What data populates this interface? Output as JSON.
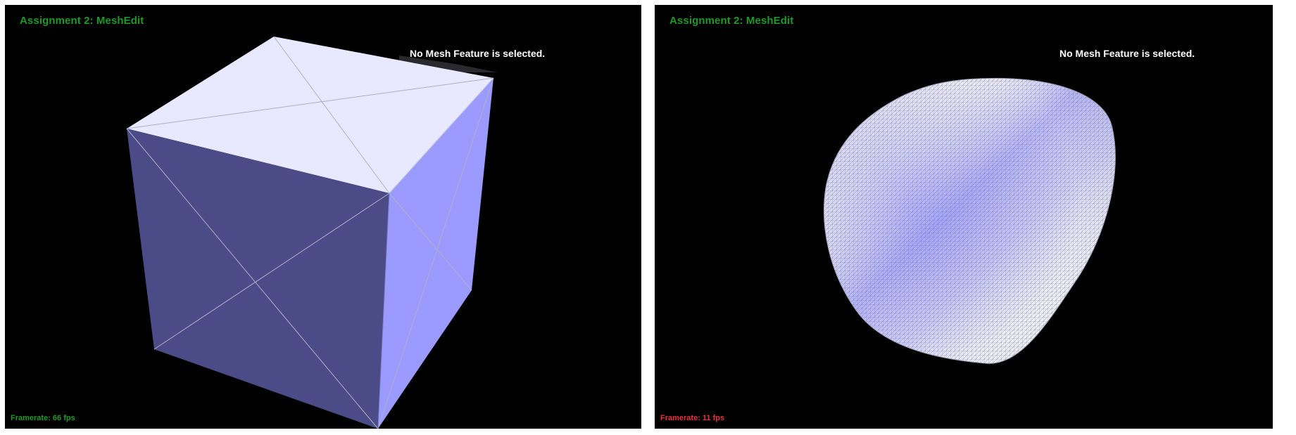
{
  "colors": {
    "background": "#000000",
    "title_green": "#1f9a2a",
    "framerate_good": "#1f9a2a",
    "framerate_slow": "#e8323c",
    "mesh_top": "#e8e8ff",
    "mesh_front": "#4b4b88",
    "mesh_side": "#9b9bff",
    "wireframe": "#c8c8d8"
  },
  "panels": [
    {
      "title": "Assignment 2: MeshEdit",
      "status": "No Mesh Feature is selected.",
      "framerate": "Framerate: 66 fps",
      "framerate_state": "good",
      "mesh": "cube"
    },
    {
      "title": "Assignment 2: MeshEdit",
      "status": "No Mesh Feature is selected.",
      "framerate": "Framerate: 11 fps",
      "framerate_state": "slow",
      "mesh": "subdivided-blob"
    }
  ]
}
